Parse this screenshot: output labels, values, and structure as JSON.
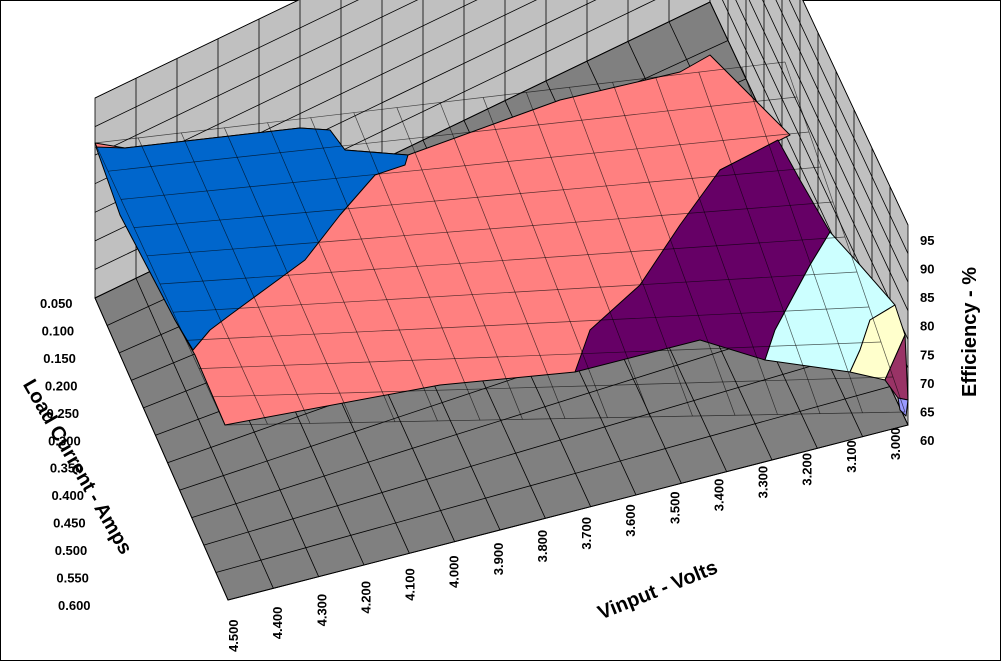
{
  "chart_data": {
    "type": "surface",
    "title": "",
    "xlabel": "Vinput - Volts",
    "ylabel": "Load Current - Amps",
    "zlabel": "Efficiency - %",
    "x_ticks": [
      "4.500",
      "4.400",
      "4.300",
      "4.200",
      "4.100",
      "4.000",
      "3.900",
      "3.800",
      "3.700",
      "3.600",
      "3.500",
      "3.400",
      "3.300",
      "3.200",
      "3.100",
      "3.000"
    ],
    "y_ticks": [
      "0.050",
      "0.100",
      "0.150",
      "0.200",
      "0.250",
      "0.300",
      "0.350",
      "0.400",
      "0.450",
      "0.500",
      "0.550",
      "0.600"
    ],
    "z_ticks": [
      "60",
      "65",
      "70",
      "75",
      "80",
      "85",
      "90",
      "95"
    ],
    "zlim": [
      60,
      95
    ],
    "color_bands": [
      {
        "range": "60-65",
        "color": "#9999ff"
      },
      {
        "range": "65-70",
        "color": "#993366"
      },
      {
        "range": "70-75",
        "color": "#ffffcc"
      },
      {
        "range": "75-80",
        "color": "#ccffff"
      },
      {
        "range": "80-85",
        "color": "#660066"
      },
      {
        "range": "85-90",
        "color": "#ff8080"
      },
      {
        "range": "90-95",
        "color": "#0066cc"
      }
    ],
    "colors": {
      "floor": "#808080",
      "walls": "#c0c0c0"
    }
  }
}
